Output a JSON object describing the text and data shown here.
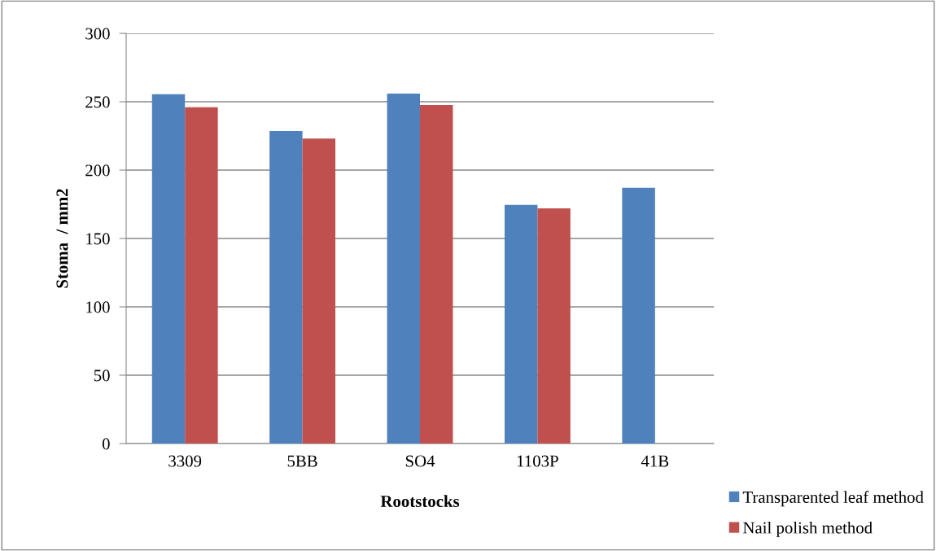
{
  "chart_data": {
    "type": "bar",
    "xlabel": "Rootstocks",
    "ylabel": "Stoma  / mm2",
    "categories": [
      "3309",
      "5BB",
      "SO4",
      "1103P",
      "41B"
    ],
    "series": [
      {
        "name": "Transparented leaf method",
        "color": "#4f81bd",
        "values": [
          255.5,
          228.6,
          256,
          174.6,
          187
        ]
      },
      {
        "name": "Nail polish method",
        "color": "#c0504d",
        "values": [
          246,
          223,
          247.6,
          172,
          null
        ]
      }
    ],
    "ylim": [
      0,
      300
    ],
    "yticks": [
      0,
      50,
      100,
      150,
      200,
      250,
      300
    ],
    "grid": "y",
    "legend": "bottom right"
  }
}
